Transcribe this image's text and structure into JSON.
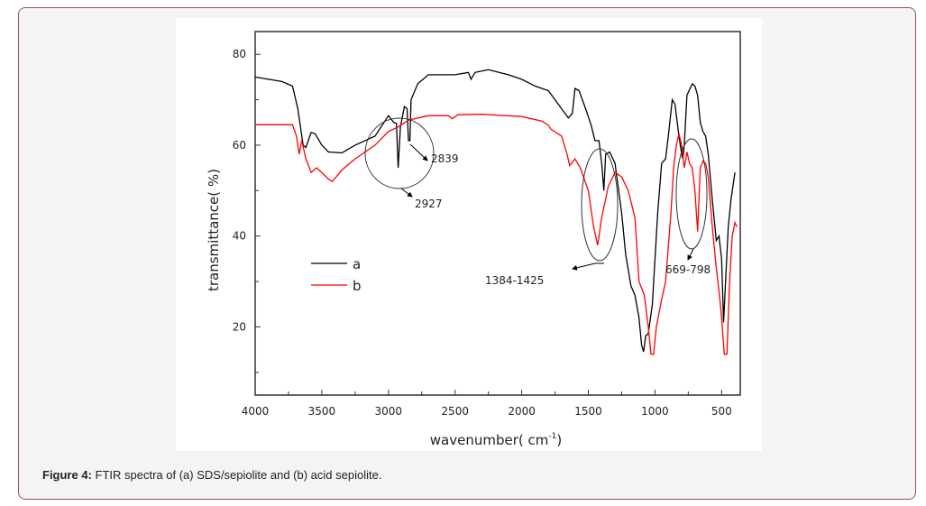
{
  "caption": {
    "label": "Figure 4:",
    "text": " FTIR spectra of (a) SDS/sepiolite and (b) acid sepiolite."
  },
  "chart_data": {
    "type": "line",
    "title": "",
    "xlabel": "wavenumber( cm",
    "xlabel_sup": "-1",
    "xlabel_close": ")",
    "ylabel": "transmittance( %)",
    "xlim": [
      4000,
      360
    ],
    "ylim": [
      5,
      85
    ],
    "x_reversed": true,
    "grid": false,
    "x_ticks": [
      4000,
      3500,
      3000,
      2500,
      2000,
      1500,
      1000,
      500
    ],
    "y_ticks": [
      20,
      40,
      60,
      80
    ],
    "legend_position": "center-left",
    "series": [
      {
        "name": "a",
        "color": "#000000",
        "x": [
          4000,
          3800,
          3720,
          3680,
          3640,
          3620,
          3580,
          3550,
          3500,
          3450,
          3350,
          3250,
          3100,
          3000,
          2960,
          2940,
          2927,
          2910,
          2880,
          2860,
          2850,
          2839,
          2830,
          2780,
          2700,
          2500,
          2400,
          2380,
          2350,
          2250,
          2100,
          2000,
          1900,
          1800,
          1700,
          1650,
          1620,
          1600,
          1570,
          1520,
          1480,
          1450,
          1420,
          1400,
          1384,
          1370,
          1340,
          1300,
          1250,
          1220,
          1180,
          1150,
          1120,
          1100,
          1085,
          1070,
          1050,
          1020,
          980,
          950,
          920,
          900,
          870,
          850,
          820,
          800,
          790,
          780,
          760,
          720,
          700,
          680,
          660,
          640,
          620,
          600,
          570,
          540,
          520,
          500,
          485,
          470,
          450,
          430,
          400
        ],
        "y": [
          75,
          74,
          73,
          68,
          60,
          59.5,
          62.8,
          62.5,
          60,
          58.5,
          58.3,
          60,
          62,
          66.5,
          65,
          64.8,
          55,
          64,
          68.5,
          68,
          61,
          61,
          70,
          73.5,
          75.5,
          75.5,
          76,
          74.5,
          76,
          76.6,
          75.5,
          74.5,
          73,
          72,
          68,
          66,
          67,
          72.5,
          72,
          68,
          64.5,
          61,
          61,
          56,
          50,
          58,
          58.5,
          56,
          45,
          36,
          29,
          27,
          22,
          16,
          14.5,
          18,
          18.5,
          25,
          45,
          56,
          57,
          62,
          70,
          69,
          62,
          58,
          57,
          60,
          71,
          73.5,
          73,
          71,
          65,
          63,
          62,
          58,
          48,
          39,
          40,
          35,
          21,
          30,
          42,
          48,
          54
        ]
      },
      {
        "name": "b",
        "color": "#ff0000",
        "x": [
          4000,
          3800,
          3720,
          3690,
          3670,
          3650,
          3620,
          3580,
          3540,
          3500,
          3450,
          3420,
          3350,
          3250,
          3100,
          3000,
          2927,
          2850,
          2700,
          2550,
          2520,
          2480,
          2300,
          2000,
          1850,
          1800,
          1780,
          1700,
          1660,
          1640,
          1600,
          1560,
          1500,
          1460,
          1430,
          1400,
          1350,
          1300,
          1250,
          1200,
          1150,
          1120,
          1080,
          1050,
          1030,
          1010,
          990,
          950,
          920,
          880,
          860,
          840,
          820,
          800,
          780,
          760,
          740,
          720,
          700,
          680,
          660,
          640,
          620,
          600,
          570,
          540,
          520,
          500,
          480,
          460,
          440,
          420,
          400,
          385
        ],
        "y": [
          64.5,
          64.5,
          64.5,
          62,
          58,
          61,
          57,
          54,
          55,
          54,
          52.5,
          52,
          54.5,
          57,
          60,
          63,
          64,
          65.5,
          66.5,
          66.5,
          65.8,
          66.7,
          66.8,
          66.3,
          65.3,
          64.4,
          63.5,
          62,
          58,
          55.5,
          57,
          55,
          50,
          42,
          38,
          44,
          51,
          54,
          53,
          50,
          44,
          30,
          27,
          20,
          14,
          14,
          20,
          26,
          30,
          45,
          55,
          60,
          62.5,
          60,
          55,
          58.5,
          56,
          55,
          50,
          41,
          55,
          56.5,
          56,
          53,
          42,
          33,
          28,
          22,
          14,
          14,
          30,
          40,
          43,
          42
        ]
      }
    ],
    "annotations": [
      "2839",
      "2927",
      "1384-1425",
      "669-798"
    ]
  }
}
